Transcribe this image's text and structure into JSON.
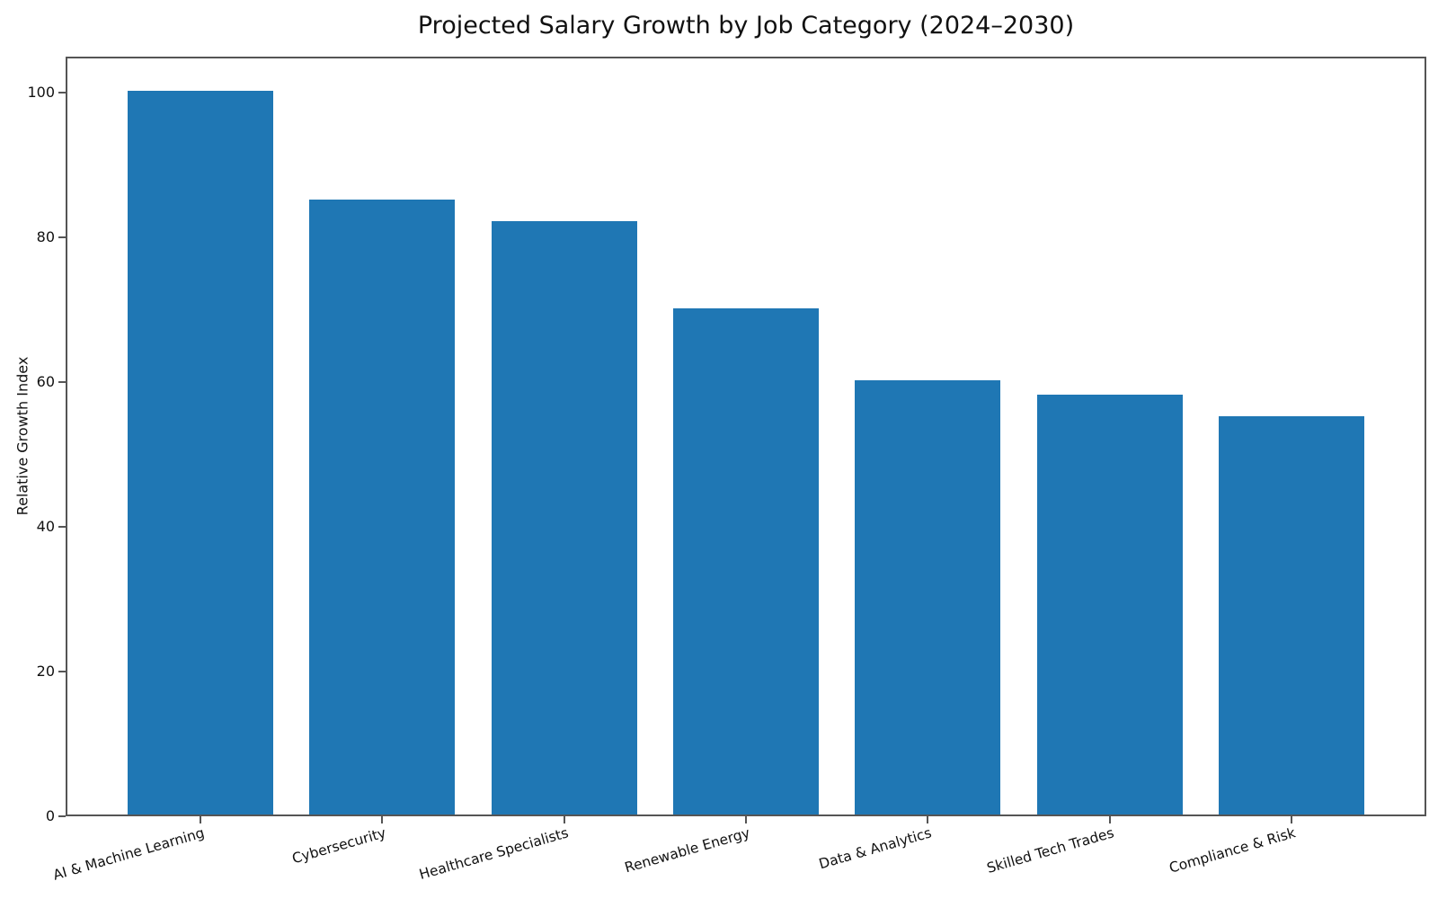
{
  "chart_data": {
    "type": "bar",
    "title": "Projected Salary Growth by Job Category (2024–2030)",
    "xlabel": "",
    "ylabel": "Relative Growth Index",
    "categories": [
      "AI & Machine Learning",
      "Cybersecurity",
      "Healthcare Specialists",
      "Renewable Energy",
      "Data & Analytics",
      "Skilled Tech Trades",
      "Compliance & Risk"
    ],
    "values": [
      100,
      85,
      82,
      70,
      60,
      58,
      55
    ],
    "yticks": [
      0,
      20,
      40,
      60,
      80,
      100
    ],
    "ylim": [
      0,
      105
    ],
    "grid": false,
    "legend": null,
    "xtick_rotation_deg": 16,
    "bar_color": "#1f77b4",
    "axis_color": "#555555",
    "text_color": "#111111",
    "background_color": "#ffffff"
  }
}
